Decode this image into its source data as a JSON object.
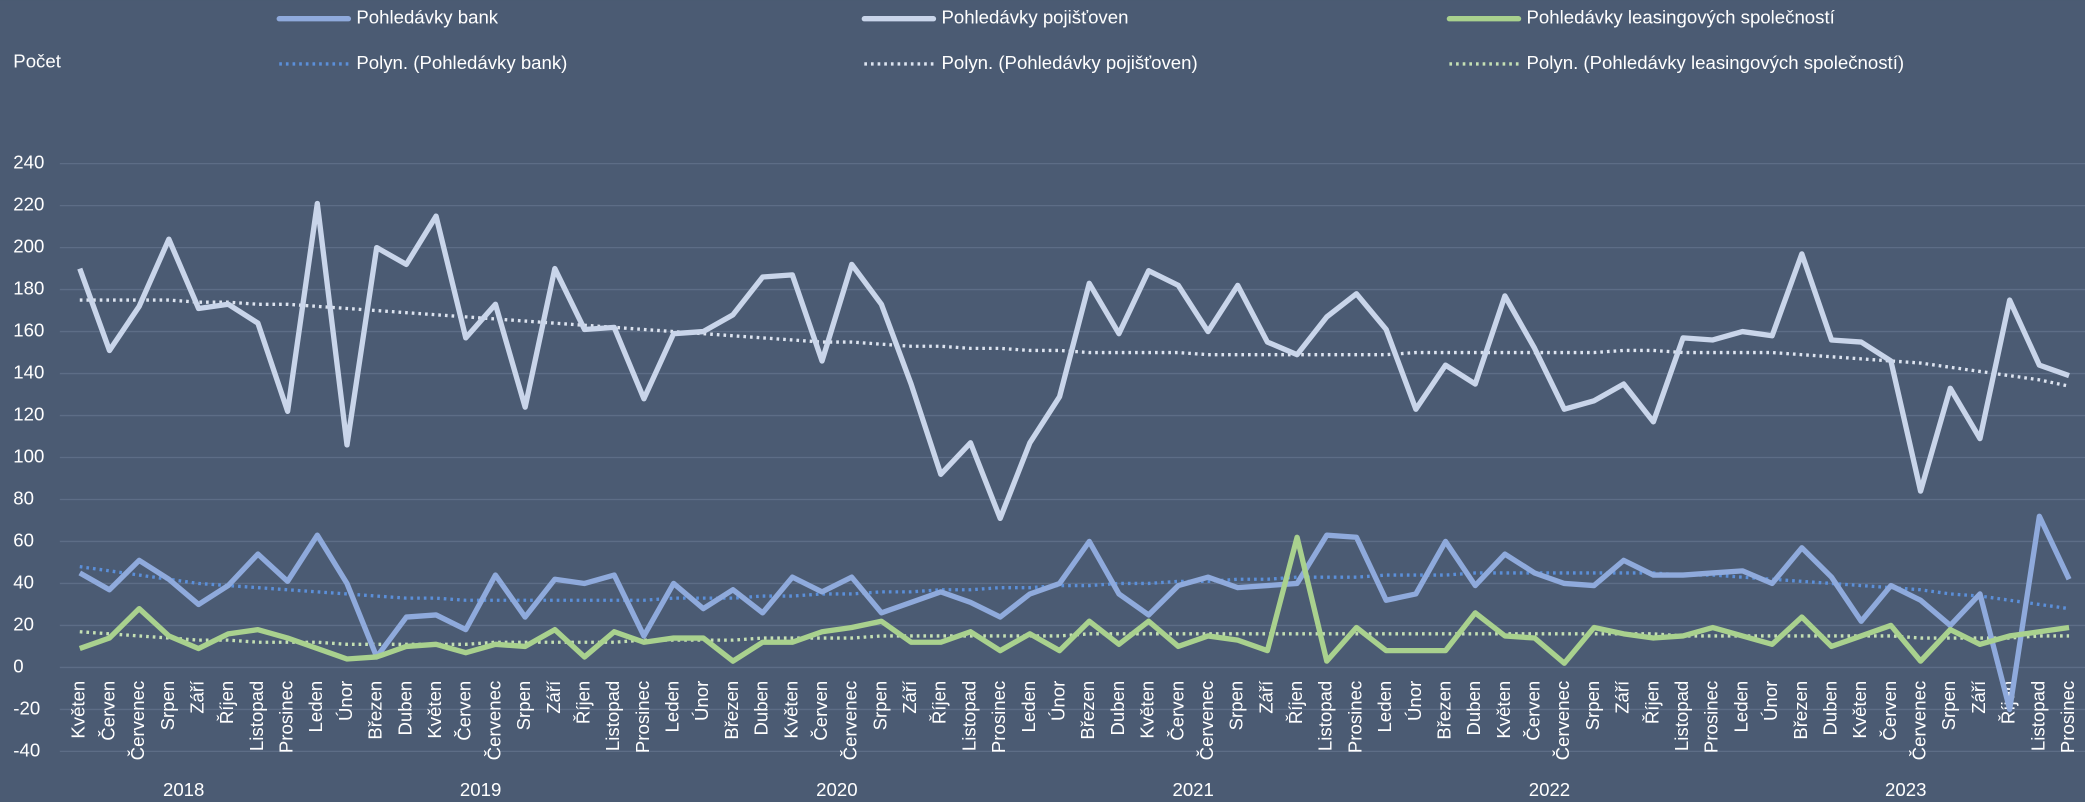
{
  "chart_data": {
    "type": "line",
    "y_label": "Počet",
    "categories": [
      "Květen",
      "Červen",
      "Červenec",
      "Srpen",
      "Září",
      "Říjen",
      "Listopad",
      "Prosinec",
      "Leden",
      "Únor",
      "Březen",
      "Duben",
      "Květen",
      "Červen",
      "Červenec",
      "Srpen",
      "Září",
      "Říjen",
      "Listopad",
      "Prosinec",
      "Leden",
      "Únor",
      "Březen",
      "Duben",
      "Květen",
      "Červen",
      "Červenec",
      "Srpen",
      "Září",
      "Říjen",
      "Listopad",
      "Prosinec",
      "Leden",
      "Únor",
      "Březen",
      "Duben",
      "Květen",
      "Červen",
      "Červenec",
      "Srpen",
      "Září",
      "Říjen",
      "Listopad",
      "Prosinec",
      "Leden",
      "Únor",
      "Březen",
      "Duben",
      "Květen",
      "Červen",
      "Červenec",
      "Srpen",
      "Září",
      "Říjen",
      "Listopad",
      "Prosinec",
      "Leden",
      "Únor",
      "Březen",
      "Duben",
      "Květen",
      "Červen",
      "Červenec",
      "Srpen",
      "Září",
      "Říjen",
      "Listopad",
      "Prosinec"
    ],
    "years": [
      "2018",
      "2019",
      "2020",
      "2021",
      "2022",
      "2023"
    ],
    "ylim": [
      -40,
      240
    ],
    "yticks": [
      -40,
      -20,
      0,
      20,
      40,
      60,
      80,
      100,
      120,
      140,
      160,
      180,
      200,
      220,
      240
    ],
    "grid": true,
    "series": [
      {
        "name": "Pohledávky bank",
        "color": "#8faadc",
        "style": "solid",
        "values": [
          45,
          37,
          51,
          42,
          30,
          39,
          54,
          41,
          63,
          40,
          5,
          24,
          25,
          18,
          44,
          24,
          42,
          40,
          44,
          15,
          40,
          28,
          37,
          26,
          43,
          36,
          43,
          26,
          31,
          36,
          31,
          24,
          35,
          40,
          60,
          35,
          25,
          39,
          43,
          38,
          39,
          40,
          63,
          62,
          32,
          35,
          60,
          39,
          54,
          45,
          40,
          39,
          51,
          44,
          44,
          45,
          46,
          40,
          57,
          43,
          22,
          39,
          32,
          20,
          35,
          -20,
          72,
          42
        ]
      },
      {
        "name": "Pohledávky pojišťoven",
        "color": "#c9d5ea",
        "style": "solid",
        "values": [
          190,
          151,
          172,
          204,
          171,
          173,
          164,
          122,
          221,
          106,
          200,
          192,
          215,
          157,
          173,
          124,
          190,
          161,
          162,
          128,
          159,
          160,
          168,
          186,
          187,
          146,
          192,
          173,
          135,
          92,
          107,
          71,
          107,
          129,
          183,
          159,
          189,
          182,
          160,
          182,
          155,
          149,
          167,
          178,
          161,
          123,
          144,
          135,
          177,
          152,
          123,
          127,
          135,
          117,
          157,
          156,
          160,
          158,
          197,
          156,
          155,
          146,
          84,
          133,
          109,
          175,
          144,
          139
        ]
      },
      {
        "name": "Pohledávky leasingových společností",
        "color": "#a9d18e",
        "style": "solid",
        "values": [
          9,
          14,
          28,
          15,
          9,
          16,
          18,
          14,
          9,
          4,
          5,
          10,
          11,
          7,
          11,
          10,
          18,
          5,
          17,
          12,
          14,
          14,
          3,
          12,
          12,
          17,
          19,
          22,
          12,
          12,
          17,
          8,
          16,
          8,
          22,
          11,
          22,
          10,
          15,
          13,
          8,
          62,
          3,
          19,
          8,
          8,
          8,
          26,
          15,
          14,
          2,
          19,
          16,
          14,
          15,
          19,
          15,
          11,
          24,
          10,
          15,
          20,
          3,
          18,
          11,
          15,
          17,
          19
        ]
      },
      {
        "name": "Polyn. (Pohledávky bank)",
        "color": "#5b8fd9",
        "style": "dotted",
        "values": [
          48,
          46,
          44,
          42,
          40,
          39,
          38,
          37,
          36,
          35,
          34,
          33,
          33,
          32,
          32,
          32,
          32,
          32,
          32,
          32,
          33,
          33,
          33,
          34,
          34,
          35,
          35,
          36,
          36,
          37,
          37,
          38,
          38,
          39,
          39,
          40,
          40,
          41,
          41,
          42,
          42,
          43,
          43,
          43,
          44,
          44,
          44,
          45,
          45,
          45,
          45,
          45,
          45,
          45,
          44,
          44,
          43,
          42,
          41,
          40,
          39,
          38,
          37,
          35,
          34,
          32,
          30,
          28
        ]
      },
      {
        "name": "Polyn. (Pohledávky pojišťoven)",
        "color": "#dde4f0",
        "style": "dotted",
        "values": [
          175,
          175,
          175,
          175,
          174,
          174,
          173,
          173,
          172,
          171,
          170,
          169,
          168,
          167,
          166,
          165,
          164,
          163,
          162,
          161,
          160,
          159,
          158,
          157,
          156,
          155,
          155,
          154,
          153,
          153,
          152,
          152,
          151,
          151,
          150,
          150,
          150,
          150,
          149,
          149,
          149,
          149,
          149,
          149,
          149,
          150,
          150,
          150,
          150,
          150,
          150,
          150,
          151,
          151,
          150,
          150,
          150,
          150,
          149,
          148,
          147,
          146,
          145,
          143,
          141,
          139,
          137,
          134
        ]
      },
      {
        "name": "Polyn. (Pohledávky leasingových společností)",
        "color": "#c5e0b4",
        "style": "dotted",
        "values": [
          17,
          16,
          15,
          14,
          13,
          13,
          12,
          12,
          12,
          11,
          11,
          11,
          11,
          11,
          12,
          12,
          12,
          12,
          12,
          13,
          13,
          13,
          13,
          14,
          14,
          14,
          14,
          15,
          15,
          15,
          15,
          15,
          15,
          15,
          16,
          16,
          16,
          16,
          16,
          16,
          16,
          16,
          16,
          16,
          16,
          16,
          16,
          16,
          16,
          16,
          16,
          16,
          16,
          16,
          15,
          15,
          15,
          15,
          15,
          15,
          15,
          15,
          14,
          14,
          14,
          14,
          15,
          15
        ]
      }
    ]
  }
}
